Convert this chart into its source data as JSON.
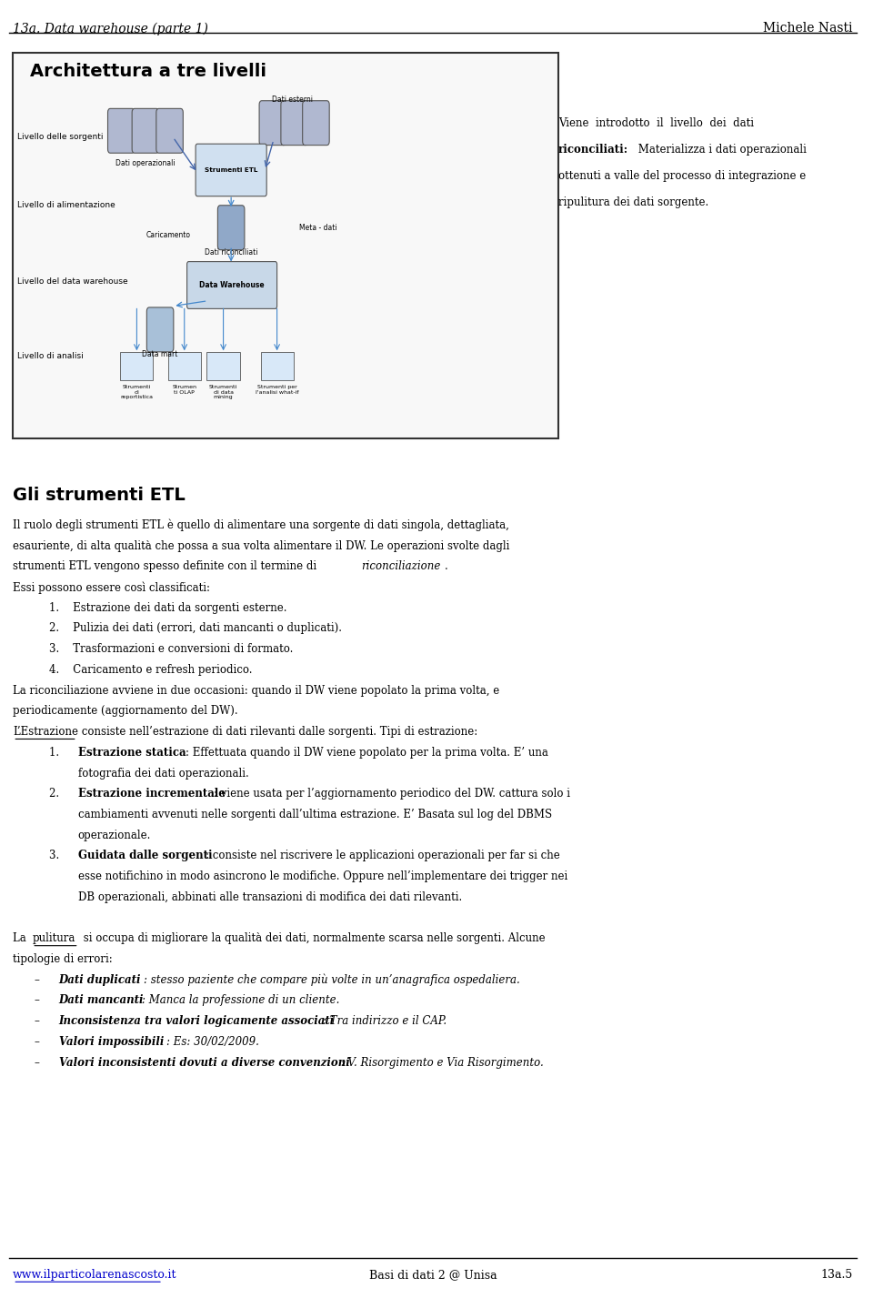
{
  "header_left": "13a. Data warehouse (parte 1)",
  "header_right": "Michele Nasti",
  "footer_left": "www.ilparticolarenascosto.it",
  "footer_center": "Basi di dati 2 @ Unisa",
  "footer_right": "13a.5",
  "bg_color": "#ffffff",
  "link_color": "#0000cc",
  "box_title": "Architettura a tre livelli",
  "section_title": "Gli strumenti ETL"
}
